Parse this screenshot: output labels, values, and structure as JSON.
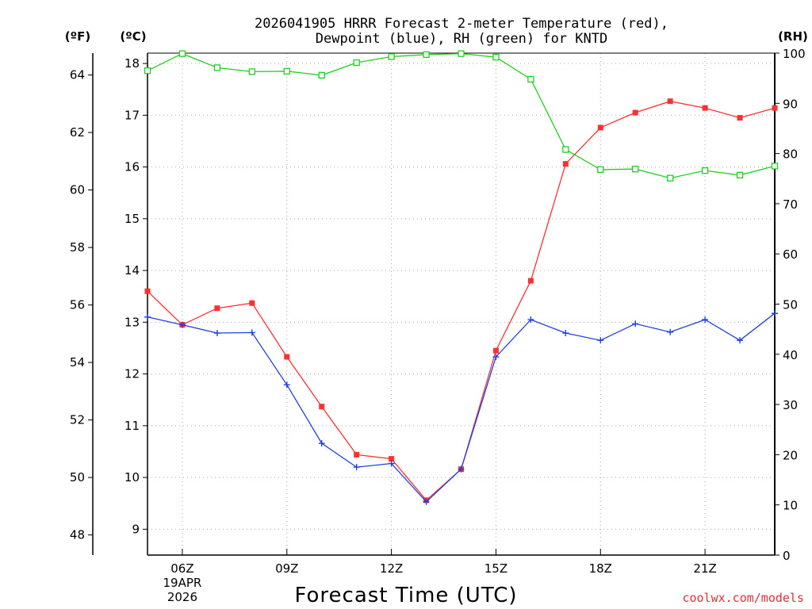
{
  "chart_data": {
    "type": "line",
    "title_line1": "2026041905 HRRR Forecast 2-meter Temperature (red),",
    "title_line2": "Dewpoint (blue), RH (green) for KNTD",
    "unit_f": "(ºF)",
    "unit_c": "(ºC)",
    "unit_rh": "(RH)",
    "xlabel": "Forecast Time (UTC)",
    "credit": "coolwx.com/models",
    "hours": [
      5,
      6,
      7,
      8,
      9,
      10,
      11,
      12,
      13,
      14,
      15,
      16,
      17,
      18,
      19,
      20,
      21,
      22,
      23
    ],
    "x_range": [
      5,
      23
    ],
    "x_ticks": [
      {
        "hour": 6,
        "label": "06Z",
        "date_line1": "19APR",
        "date_line2": "2026"
      },
      {
        "hour": 9,
        "label": "09Z"
      },
      {
        "hour": 12,
        "label": "12Z"
      },
      {
        "hour": 15,
        "label": "15Z"
      },
      {
        "hour": 18,
        "label": "18Z"
      },
      {
        "hour": 21,
        "label": "21Z"
      }
    ],
    "celsius_range": [
      8.5,
      18.2
    ],
    "celsius_ticks": [
      9,
      10,
      11,
      12,
      13,
      14,
      15,
      16,
      17,
      18
    ],
    "fahrenheit_ticks": [
      48,
      50,
      52,
      54,
      56,
      58,
      60,
      62,
      64
    ],
    "rh_range": [
      0,
      100
    ],
    "rh_ticks": [
      0,
      10,
      20,
      30,
      40,
      50,
      60,
      70,
      80,
      90,
      100
    ],
    "series": [
      {
        "name": "Temperature",
        "axis": "celsius",
        "color": "#ff3030",
        "marker": "filled-square",
        "values": [
          13.6,
          12.95,
          13.27,
          13.37,
          12.33,
          11.37,
          10.44,
          10.36,
          9.56,
          10.16,
          12.45,
          13.8,
          16.06,
          16.76,
          17.05,
          17.27,
          17.14,
          16.95,
          17.14
        ]
      },
      {
        "name": "Dewpoint",
        "axis": "celsius",
        "color": "#2040e0",
        "marker": "plus",
        "values": [
          13.1,
          12.95,
          12.79,
          12.8,
          11.79,
          10.66,
          10.2,
          10.27,
          9.53,
          10.16,
          12.33,
          13.05,
          12.79,
          12.65,
          12.97,
          12.81,
          13.05,
          12.65,
          13.17
        ]
      },
      {
        "name": "RH",
        "axis": "rh",
        "color": "#20d020",
        "marker": "open-square",
        "values": [
          96.5,
          99.9,
          97.1,
          96.3,
          96.4,
          95.6,
          98.1,
          99.3,
          99.7,
          99.9,
          99.2,
          94.8,
          80.8,
          76.8,
          76.9,
          75.1,
          76.6,
          75.7,
          77.5
        ]
      }
    ]
  }
}
